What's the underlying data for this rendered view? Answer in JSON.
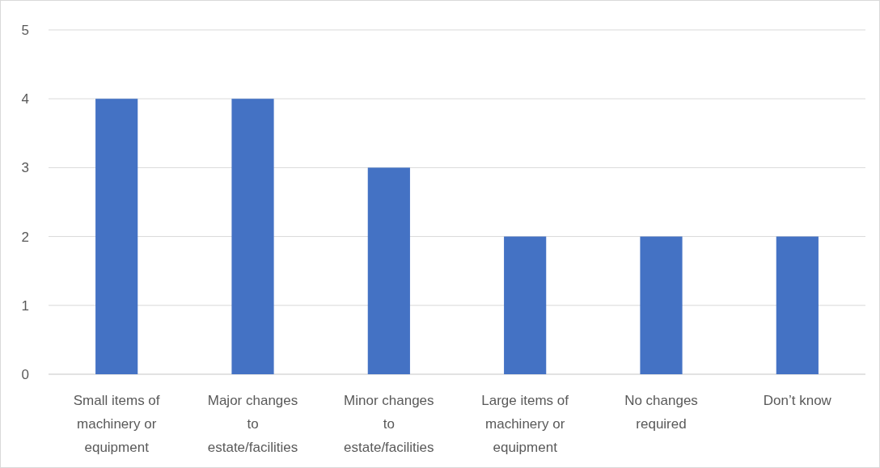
{
  "chart_data": {
    "type": "bar",
    "categories": [
      "Small items of machinery or equipment",
      "Major changes to estate/facilities",
      "Minor changes to estate/facilities",
      "Large items of machinery or equipment",
      "No changes required",
      "Don’t know"
    ],
    "values": [
      4,
      4,
      3,
      2,
      2,
      2
    ],
    "color": "#4472c4",
    "ylim": [
      0,
      5
    ],
    "yticks": [
      0,
      1,
      2,
      3,
      4,
      5
    ],
    "grid": "y"
  }
}
